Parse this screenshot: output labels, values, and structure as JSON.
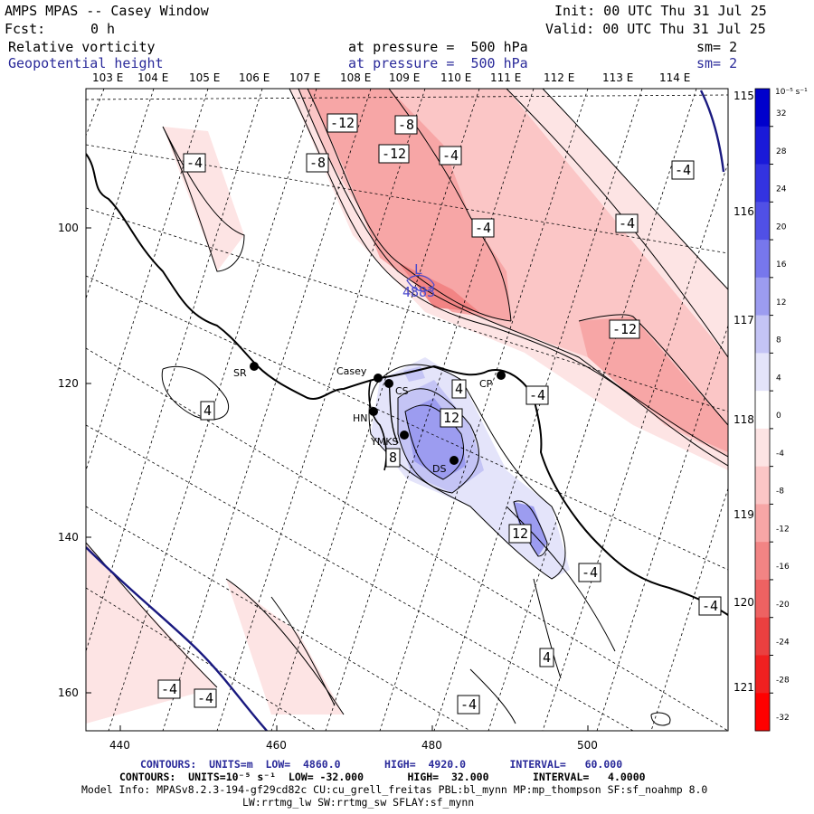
{
  "header": {
    "title": "AMPS MPAS -- Casey Window",
    "fcst_label": "Fcst:",
    "fcst_value": "0 h",
    "init": "Init: 00 UTC Thu 31 Jul 25",
    "valid": "Valid: 00 UTC Thu 31 Jul 25",
    "field1": "Relative vorticity",
    "field2": "Geopotential height",
    "pressure1": "at pressure =  500 hPa",
    "pressure2": "at pressure =  500 hPa",
    "sm1": "sm= 2",
    "sm2": "sm= 2"
  },
  "map": {
    "lon_top_labels": [
      "103 E",
      "104 E",
      "105 E",
      "106 E",
      "107 E",
      "108 E",
      "109 E",
      "110 E",
      "111 E",
      "112 E",
      "113 E",
      "114 E"
    ],
    "lon_right_labels": [
      "115 E",
      "116 E",
      "117 E",
      "118 E",
      "119 E",
      "120 E",
      "121 E"
    ],
    "y_ticks": [
      "100",
      "120",
      "140",
      "160"
    ],
    "x_ticks": [
      "440",
      "460",
      "480",
      "500"
    ],
    "low_label": "L",
    "low_value": "4883",
    "stations": [
      {
        "name": "SR"
      },
      {
        "name": "Casey"
      },
      {
        "name": "CS"
      },
      {
        "name": "HN"
      },
      {
        "name": "YMKS"
      },
      {
        "name": "DS"
      },
      {
        "name": "CP"
      }
    ],
    "contour_labels": [
      "-12",
      "-8",
      "-12",
      "-8",
      "-4",
      "-4",
      "-4",
      "-4",
      "-4",
      "-12",
      "4",
      "-4",
      "12",
      "4",
      "8",
      "12",
      "-4",
      "-4",
      "4",
      "-4",
      "-4",
      "-4"
    ]
  },
  "colorbar": {
    "units": "10⁻⁵ s⁻¹",
    "ticks": [
      "32",
      "28",
      "24",
      "20",
      "16",
      "12",
      "8",
      "4",
      "0",
      "-4",
      "-8",
      "-12",
      "-16",
      "-20",
      "-24",
      "-28",
      "-32"
    ],
    "colors": [
      "#0000cc",
      "#1a1ad9",
      "#3333e0",
      "#5050e6",
      "#7777ec",
      "#9c9cf0",
      "#c4c4f5",
      "#e4e4fa",
      "#ffffff",
      "#fde4e4",
      "#fbc6c6",
      "#f7a6a6",
      "#f28484",
      "#ee6262",
      "#ea4040",
      "#f02020",
      "#ff0000"
    ]
  },
  "footer": {
    "line1": "CONTOURS:  UNITS=m  LOW=  4860.0       HIGH=  4920.0       INTERVAL=   60.000",
    "line2": "CONTOURS:  UNITS=10⁻⁵ s⁻¹  LOW= -32.000       HIGH=  32.000       INTERVAL=   4.0000",
    "line3": "Model Info: MPASv8.2.3-194-gf29cd82c CU:cu_grell_freitas PBL:bl_mynn MP:mp_thompson SF:sf_noahmp 8.0",
    "line4": "LW:rrtmg_lw SW:rrtmg_sw SFLAY:sf_mynn"
  }
}
